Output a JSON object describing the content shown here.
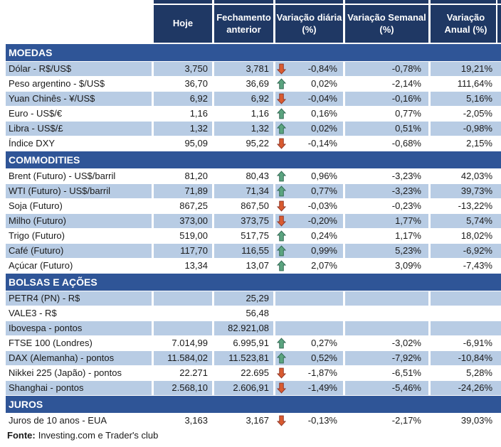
{
  "colors": {
    "header_bg": "#1F3864",
    "section_bg": "#2F5597",
    "row_shade": "#B8CCE4",
    "text": "#1A1A1A",
    "arrow_up_fill": "#5BA47F",
    "arrow_up_stroke": "#2E6650",
    "arrow_down_fill": "#D95B30",
    "arrow_down_stroke": "#8E3526"
  },
  "icons": {
    "up": "arrow-up-icon",
    "down": "arrow-down-icon"
  },
  "table": {
    "columns": [
      "Hoje",
      "Fechamento\nanterior",
      "Variação diária\n(%)",
      "Variação Semanal\n(%)",
      "Variação\nAnual (%)"
    ],
    "sections": [
      {
        "title": "MOEDAS",
        "rows": [
          {
            "label": "Dólar - R$/US$",
            "hoje": "3,750",
            "fechamento": "3,781",
            "arrow": "down",
            "var_diaria": "-0,84%",
            "var_semanal": "-0,78%",
            "var_anual": "19,21%"
          },
          {
            "label": "Peso argentino - $/US$",
            "hoje": "36,70",
            "fechamento": "36,69",
            "arrow": "up",
            "var_diaria": "0,02%",
            "var_semanal": "-2,14%",
            "var_anual": "111,64%"
          },
          {
            "label": "Yuan Chinês - ¥/US$",
            "hoje": "6,92",
            "fechamento": "6,92",
            "arrow": "down",
            "var_diaria": "-0,04%",
            "var_semanal": "-0,16%",
            "var_anual": "5,16%"
          },
          {
            "label": "Euro - US$/€",
            "hoje": "1,16",
            "fechamento": "1,16",
            "arrow": "up",
            "var_diaria": "0,16%",
            "var_semanal": "0,77%",
            "var_anual": "-2,05%"
          },
          {
            "label": "Libra - US$/£",
            "hoje": "1,32",
            "fechamento": "1,32",
            "arrow": "up",
            "var_diaria": "0,02%",
            "var_semanal": "0,51%",
            "var_anual": "-0,98%"
          },
          {
            "label": "Índice DXY",
            "hoje": "95,09",
            "fechamento": "95,22",
            "arrow": "down",
            "var_diaria": "-0,14%",
            "var_semanal": "-0,68%",
            "var_anual": "2,15%"
          }
        ]
      },
      {
        "title": "COMMODITIES",
        "rows": [
          {
            "label": "Brent (Futuro) - US$/barril",
            "hoje": "81,20",
            "fechamento": "80,43",
            "arrow": "up",
            "var_diaria": "0,96%",
            "var_semanal": "-3,23%",
            "var_anual": "42,03%"
          },
          {
            "label": "WTI (Futuro) - US$/barril",
            "hoje": "71,89",
            "fechamento": "71,34",
            "arrow": "up",
            "var_diaria": "0,77%",
            "var_semanal": "-3,23%",
            "var_anual": "39,73%"
          },
          {
            "label": "Soja (Futuro)",
            "hoje": "867,25",
            "fechamento": "867,50",
            "arrow": "down",
            "var_diaria": "-0,03%",
            "var_semanal": "-0,23%",
            "var_anual": "-13,22%"
          },
          {
            "label": "Milho (Futuro)",
            "hoje": "373,00",
            "fechamento": "373,75",
            "arrow": "down",
            "var_diaria": "-0,20%",
            "var_semanal": "1,77%",
            "var_anual": "5,74%"
          },
          {
            "label": "Trigo (Futuro)",
            "hoje": "519,00",
            "fechamento": "517,75",
            "arrow": "up",
            "var_diaria": "0,24%",
            "var_semanal": "1,17%",
            "var_anual": "18,02%"
          },
          {
            "label": "Café (Futuro)",
            "hoje": "117,70",
            "fechamento": "116,55",
            "arrow": "up",
            "var_diaria": "0,99%",
            "var_semanal": "5,23%",
            "var_anual": "-6,92%"
          },
          {
            "label": "Açúcar (Futuro)",
            "hoje": "13,34",
            "fechamento": "13,07",
            "arrow": "up",
            "var_diaria": "2,07%",
            "var_semanal": "3,09%",
            "var_anual": "-7,43%"
          }
        ]
      },
      {
        "title": "BOLSAS E AÇÕES",
        "rows": [
          {
            "label": "PETR4 (PN) - R$",
            "hoje": "",
            "fechamento": "25,29",
            "arrow": "",
            "var_diaria": "",
            "var_semanal": "",
            "var_anual": ""
          },
          {
            "label": "VALE3 - R$",
            "hoje": "",
            "fechamento": "56,48",
            "arrow": "",
            "var_diaria": "",
            "var_semanal": "",
            "var_anual": ""
          },
          {
            "label": "Ibovespa - pontos",
            "hoje": "",
            "fechamento": "82.921,08",
            "arrow": "",
            "var_diaria": "",
            "var_semanal": "",
            "var_anual": ""
          },
          {
            "label": "FTSE 100 (Londres)",
            "hoje": "7.014,99",
            "fechamento": "6.995,91",
            "arrow": "up",
            "var_diaria": "0,27%",
            "var_semanal": "-3,02%",
            "var_anual": "-6,91%"
          },
          {
            "label": "DAX (Alemanha) - pontos",
            "hoje": "11.584,02",
            "fechamento": "11.523,81",
            "arrow": "up",
            "var_diaria": "0,52%",
            "var_semanal": "-7,92%",
            "var_anual": "-10,84%"
          },
          {
            "label": "Nikkei 225 (Japão) - pontos",
            "hoje": "22.271",
            "fechamento": "22.695",
            "arrow": "down",
            "var_diaria": "-1,87%",
            "var_semanal": "-6,51%",
            "var_anual": "5,28%"
          },
          {
            "label": "Shanghai - pontos",
            "hoje": "2.568,10",
            "fechamento": "2.606,91",
            "arrow": "down",
            "var_diaria": "-1,49%",
            "var_semanal": "-5,46%",
            "var_anual": "-24,26%"
          }
        ]
      },
      {
        "title": "JUROS",
        "rows": [
          {
            "label": "Juros de 10 anos - EUA",
            "hoje": "3,163",
            "fechamento": "3,167",
            "arrow": "down",
            "var_diaria": "-0,13%",
            "var_semanal": "-2,17%",
            "var_anual": "39,03%"
          }
        ]
      }
    ],
    "footer": {
      "source_label": "Fonte:",
      "source_text": "Investing.com e Trader's club"
    }
  }
}
